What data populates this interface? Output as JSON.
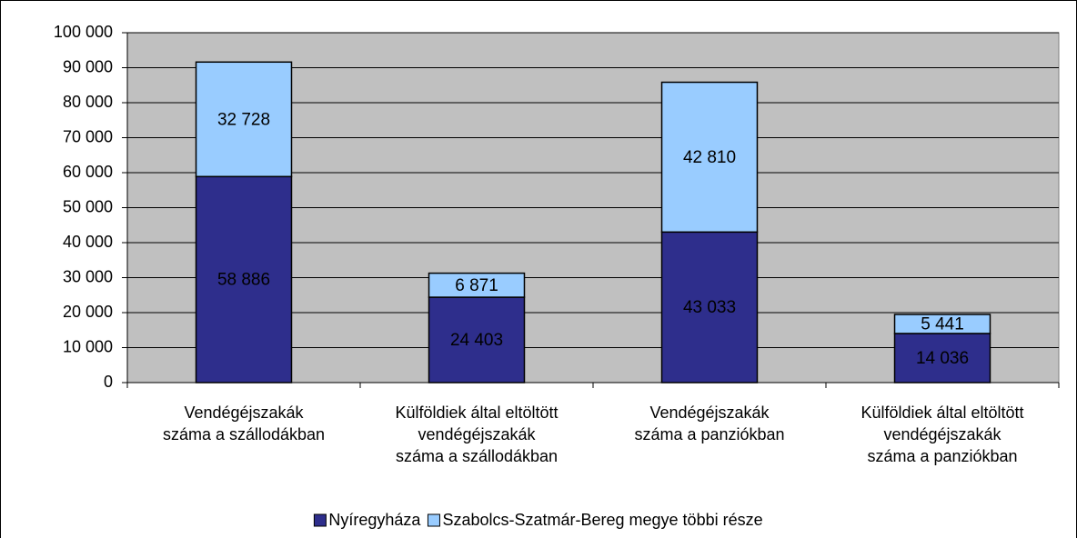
{
  "chart_data": {
    "type": "stacked_bar",
    "categories": [
      "Vendégéjszakák\nszáma a szállodákban",
      "Külföldiek által eltöltött\nvendégéjszakák\nszáma a szállodákban",
      "Vendégéjszakák\nszáma a panziókban",
      "Külföldiek által eltöltött\nvendégéjszakák\nszáma a panziókban"
    ],
    "series": [
      {
        "name": "Nyíregyháza",
        "color": "#2e2e8c",
        "values": [
          58886,
          24403,
          43033,
          14036
        ],
        "value_labels": [
          "58 886",
          "24 403",
          "43 033",
          "14 036"
        ]
      },
      {
        "name": "Szabolcs-Szatmár-Bereg megye többi része",
        "color": "#99ccff",
        "values": [
          32728,
          6871,
          42810,
          5441
        ],
        "value_labels": [
          "32 728",
          "6 871",
          "42 810",
          "5 441"
        ]
      }
    ],
    "ylim": [
      0,
      100000
    ],
    "yticks": [
      {
        "value": 0,
        "label": "0"
      },
      {
        "value": 10000,
        "label": "10 000"
      },
      {
        "value": 20000,
        "label": "20 000"
      },
      {
        "value": 30000,
        "label": "30 000"
      },
      {
        "value": 40000,
        "label": "40 000"
      },
      {
        "value": 50000,
        "label": "50 000"
      },
      {
        "value": 60000,
        "label": "60 000"
      },
      {
        "value": 70000,
        "label": "70 000"
      },
      {
        "value": 80000,
        "label": "80 000"
      },
      {
        "value": 90000,
        "label": "90 000"
      },
      {
        "value": 100000,
        "label": "100 000"
      }
    ],
    "grid": true,
    "legend": "bottom"
  }
}
